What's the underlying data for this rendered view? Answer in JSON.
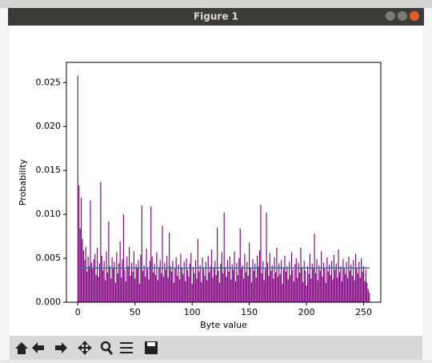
{
  "window": {
    "title": "Figure 1"
  },
  "chart_data": {
    "type": "bar",
    "xlabel": "Byte value",
    "ylabel": "Probability",
    "color": "#800080",
    "x": [
      0,
      1,
      2,
      3,
      4,
      5,
      6,
      7,
      8,
      9,
      10,
      11,
      12,
      13,
      14,
      15,
      16,
      17,
      18,
      19,
      20,
      21,
      22,
      23,
      24,
      25,
      26,
      27,
      28,
      29,
      30,
      31,
      32,
      33,
      34,
      35,
      36,
      37,
      38,
      39,
      40,
      41,
      42,
      43,
      44,
      45,
      46,
      47,
      48,
      49,
      50,
      51,
      52,
      53,
      54,
      55,
      56,
      57,
      58,
      59,
      60,
      61,
      62,
      63,
      64,
      65,
      66,
      67,
      68,
      69,
      70,
      71,
      72,
      73,
      74,
      75,
      76,
      77,
      78,
      79,
      80,
      81,
      82,
      83,
      84,
      85,
      86,
      87,
      88,
      89,
      90,
      91,
      92,
      93,
      94,
      95,
      96,
      97,
      98,
      99,
      100,
      101,
      102,
      103,
      104,
      105,
      106,
      107,
      108,
      109,
      110,
      111,
      112,
      113,
      114,
      115,
      116,
      117,
      118,
      119,
      120,
      121,
      122,
      123,
      124,
      125,
      126,
      127,
      128,
      129,
      130,
      131,
      132,
      133,
      134,
      135,
      136,
      137,
      138,
      139,
      140,
      141,
      142,
      143,
      144,
      145,
      146,
      147,
      148,
      149,
      150,
      151,
      152,
      153,
      154,
      155,
      156,
      157,
      158,
      159,
      160,
      161,
      162,
      163,
      164,
      165,
      166,
      167,
      168,
      169,
      170,
      171,
      172,
      173,
      174,
      175,
      176,
      177,
      178,
      179,
      180,
      181,
      182,
      183,
      184,
      185,
      186,
      187,
      188,
      189,
      190,
      191,
      192,
      193,
      194,
      195,
      196,
      197,
      198,
      199,
      200,
      201,
      202,
      203,
      204,
      205,
      206,
      207,
      208,
      209,
      210,
      211,
      212,
      213,
      214,
      215,
      216,
      217,
      218,
      219,
      220,
      221,
      222,
      223,
      224,
      225,
      226,
      227,
      228,
      229,
      230,
      231,
      232,
      233,
      234,
      235,
      236,
      237,
      238,
      239,
      240,
      241,
      242,
      243,
      244,
      245,
      246,
      247,
      248,
      249,
      250,
      251,
      252,
      253,
      254,
      255
    ],
    "values": [
      0.0258,
      0.0133,
      0.0084,
      0.0119,
      0.0072,
      0.0059,
      0.0048,
      0.0063,
      0.0035,
      0.0052,
      0.0041,
      0.0116,
      0.0045,
      0.0038,
      0.0049,
      0.0055,
      0.0031,
      0.0062,
      0.0029,
      0.0044,
      0.0137,
      0.0053,
      0.0036,
      0.0047,
      0.0025,
      0.0058,
      0.0034,
      0.0092,
      0.0041,
      0.0027,
      0.0051,
      0.0039,
      0.0046,
      0.0022,
      0.0057,
      0.0033,
      0.0044,
      0.0069,
      0.0028,
      0.0049,
      0.01,
      0.0037,
      0.0024,
      0.0052,
      0.0041,
      0.0063,
      0.003,
      0.0045,
      0.0035,
      0.0058,
      0.0027,
      0.0043,
      0.0039,
      0.0048,
      0.0021,
      0.0054,
      0.011,
      0.0036,
      0.0042,
      0.0029,
      0.0061,
      0.0038,
      0.0026,
      0.0047,
      0.0109,
      0.0052,
      0.0034,
      0.0044,
      0.0031,
      0.0057,
      0.0025,
      0.004,
      0.0048,
      0.0033,
      0.0087,
      0.0029,
      0.0045,
      0.0037,
      0.0053,
      0.0028,
      0.0079,
      0.0041,
      0.0035,
      0.0047,
      0.0022,
      0.0038,
      0.0051,
      0.003,
      0.0043,
      0.0026,
      0.0055,
      0.0039,
      0.0032,
      0.0046,
      0.0024,
      0.005,
      0.0037,
      0.0029,
      0.0044,
      0.0056,
      0.0021,
      0.004,
      0.0033,
      0.0048,
      0.0027,
      0.0072,
      0.0035,
      0.0042,
      0.0023,
      0.0051,
      0.0038,
      0.003,
      0.0046,
      0.0025,
      0.0053,
      0.0034,
      0.0041,
      0.006,
      0.0028,
      0.0039,
      0.0047,
      0.0031,
      0.0085,
      0.0036,
      0.0022,
      0.0044,
      0.0057,
      0.0033,
      0.0102,
      0.004,
      0.0029,
      0.0048,
      0.0035,
      0.0052,
      0.0026,
      0.0043,
      0.0037,
      0.0058,
      0.0024,
      0.0045,
      0.0031,
      0.005,
      0.0084,
      0.0038,
      0.0042,
      0.0027,
      0.0055,
      0.0034,
      0.0046,
      0.003,
      0.0068,
      0.0039,
      0.0023,
      0.0049,
      0.0036,
      0.0044,
      0.0028,
      0.0053,
      0.0041,
      0.0059,
      0.0111,
      0.0033,
      0.0047,
      0.0025,
      0.0038,
      0.0102,
      0.0045,
      0.003,
      0.0056,
      0.0036,
      0.0042,
      0.0027,
      0.0051,
      0.0034,
      0.0062,
      0.0029,
      0.0044,
      0.0032,
      0.0048,
      0.0021,
      0.0039,
      0.0053,
      0.0035,
      0.0041,
      0.0026,
      0.0046,
      0.0031,
      0.0057,
      0.0037,
      0.0024,
      0.0043,
      0.005,
      0.0028,
      0.0045,
      0.0034,
      0.0062,
      0.004,
      0.0023,
      0.0047,
      0.0036,
      0.0019,
      0.0041,
      0.0032,
      0.0055,
      0.0027,
      0.0044,
      0.0038,
      0.0078,
      0.0033,
      0.0049,
      0.0025,
      0.0042,
      0.0036,
      0.0058,
      0.0029,
      0.0045,
      0.0039,
      0.0022,
      0.0051,
      0.0035,
      0.0043,
      0.0031,
      0.0047,
      0.0026,
      0.0054,
      0.0037,
      0.0044,
      0.0028,
      0.006,
      0.0034,
      0.0041,
      0.0024,
      0.0049,
      0.0038,
      0.0032,
      0.0046,
      0.0027,
      0.0052,
      0.0036,
      0.0043,
      0.003,
      0.0048,
      0.0025,
      0.0055,
      0.0039,
      0.0033,
      0.0046,
      0.0028,
      0.005,
      0.0035,
      0.0041,
      0.0024,
      0.0037,
      0.0022,
      0.0015,
      0.0011
    ],
    "line": {
      "x": [
        0,
        255
      ],
      "values": [
        0.0039,
        0.0039
      ],
      "color": "#1f77b4"
    },
    "xlim": [
      -10,
      265
    ],
    "ylim": [
      0,
      0.0273
    ],
    "xticks": [
      0,
      50,
      100,
      150,
      200,
      250
    ],
    "yticks": [
      {
        "value": 0,
        "label": "0.000"
      },
      {
        "value": 0.005,
        "label": "0.005"
      },
      {
        "value": 0.01,
        "label": "0.010"
      },
      {
        "value": 0.015,
        "label": "0.015"
      },
      {
        "value": 0.02,
        "label": "0.020"
      },
      {
        "value": 0.025,
        "label": "0.025"
      }
    ]
  }
}
